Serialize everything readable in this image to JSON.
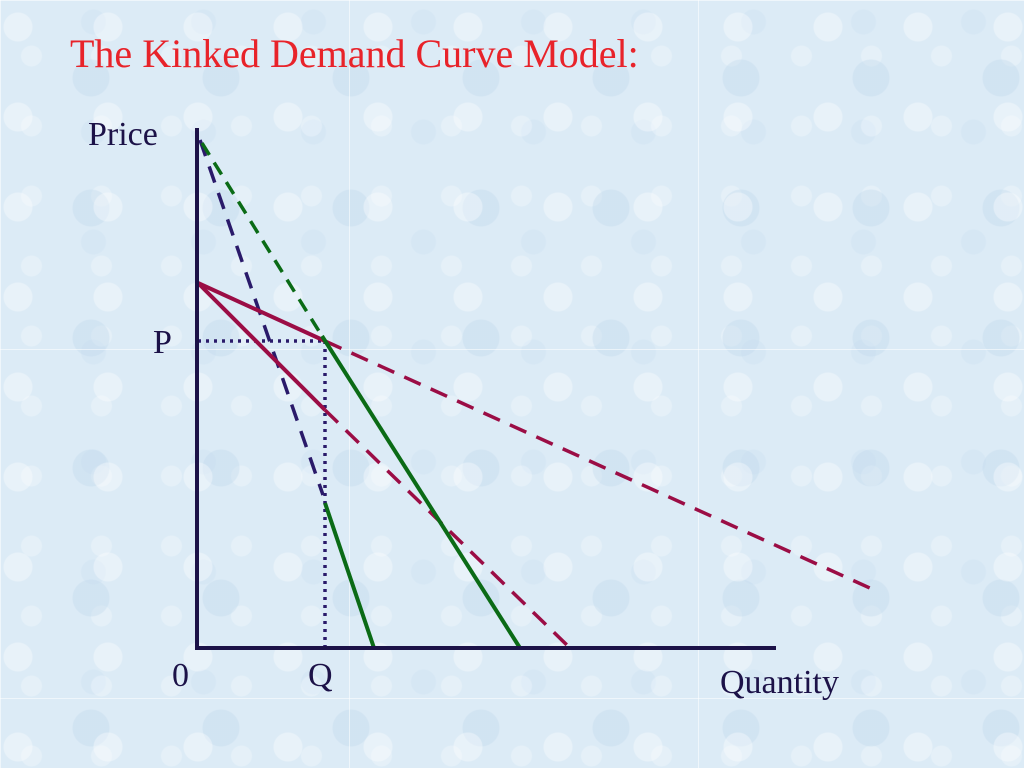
{
  "slide": {
    "title": "The Kinked Demand Curve Model:"
  },
  "diagram": {
    "axis_labels": {
      "y": "Price",
      "x": "Quantity",
      "origin": "0",
      "price_level": "P",
      "quantity_level": "Q"
    },
    "colors": {
      "axes": "#1c1248",
      "maroon_curves": "#9b0d45",
      "green_curves": "#0b6b16",
      "navy_dashed": "#2a1a6a",
      "guides": "#2a1a6a",
      "title": "#e8232a"
    }
  }
}
